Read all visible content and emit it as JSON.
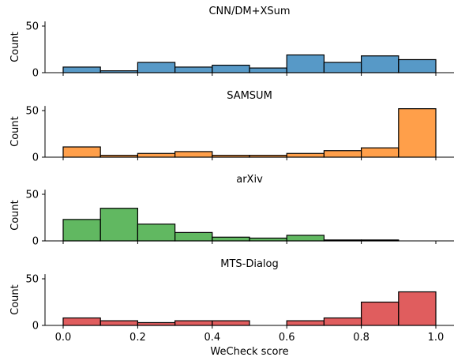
{
  "chart_data": [
    {
      "type": "bar",
      "title": "CNN/DM+XSum",
      "ylabel": "Count",
      "xlabel": "",
      "xlim": [
        -0.07,
        1.05
      ],
      "ylim": [
        0,
        55
      ],
      "yticks": [
        "0",
        "50"
      ],
      "xticks": [],
      "color": "#1f77b4",
      "bin_edges": [
        0.0,
        0.1,
        0.2,
        0.3,
        0.4,
        0.5,
        0.6,
        0.7,
        0.8,
        0.9,
        1.0
      ],
      "values": [
        6,
        2,
        11,
        6,
        8,
        5,
        19,
        11,
        18,
        14
      ]
    },
    {
      "type": "bar",
      "title": "SAMSUM",
      "ylabel": "Count",
      "xlabel": "",
      "xlim": [
        -0.07,
        1.05
      ],
      "ylim": [
        0,
        55
      ],
      "yticks": [
        "0",
        "50"
      ],
      "xticks": [],
      "color": "#ff7f0e",
      "bin_edges": [
        0.0,
        0.1,
        0.2,
        0.3,
        0.4,
        0.5,
        0.6,
        0.7,
        0.8,
        0.9,
        1.0
      ],
      "values": [
        11,
        2,
        4,
        6,
        2,
        2,
        4,
        7,
        10,
        52
      ]
    },
    {
      "type": "bar",
      "title": "arXiv",
      "ylabel": "Count",
      "xlabel": "",
      "xlim": [
        -0.07,
        1.05
      ],
      "ylim": [
        0,
        55
      ],
      "yticks": [
        "0",
        "50"
      ],
      "xticks": [],
      "color": "#2ca02c",
      "bin_edges": [
        0.0,
        0.1,
        0.2,
        0.3,
        0.4,
        0.5,
        0.6,
        0.7,
        0.8,
        0.9,
        1.0
      ],
      "values": [
        23,
        35,
        18,
        9,
        4,
        3,
        6,
        1,
        1,
        0
      ]
    },
    {
      "type": "bar",
      "title": "MTS-Dialog",
      "ylabel": "Count",
      "xlabel": "WeCheck score",
      "xlim": [
        -0.07,
        1.05
      ],
      "ylim": [
        0,
        55
      ],
      "yticks": [
        "0",
        "50"
      ],
      "xticks": [
        "0.0",
        "0.2",
        "0.4",
        "0.6",
        "0.8",
        "1.0"
      ],
      "color": "#d62728",
      "bin_edges": [
        0.0,
        0.1,
        0.2,
        0.3,
        0.4,
        0.5,
        0.6,
        0.7,
        0.8,
        0.9,
        1.0
      ],
      "values": [
        8,
        5,
        3,
        5,
        5,
        0,
        5,
        8,
        25,
        36
      ]
    }
  ]
}
